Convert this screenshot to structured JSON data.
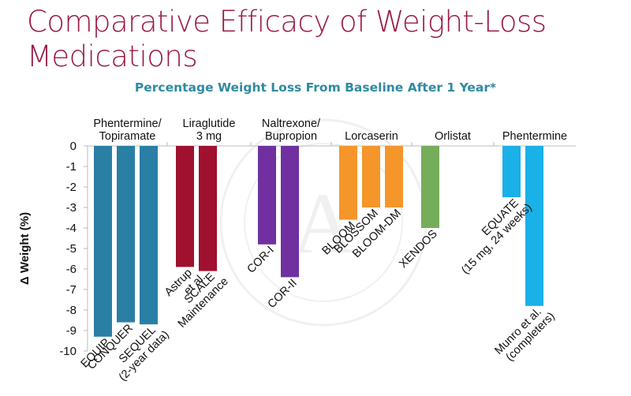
{
  "slide": {
    "title": "Comparative Efficacy of Weight-Loss Medications",
    "subtitle": "Percentage Weight Loss From Baseline After 1 Year*"
  },
  "chart_data": {
    "type": "bar",
    "title": "Percentage Weight Loss From Baseline After 1 Year*",
    "xlabel": "",
    "ylabel": "Δ Weight (%)",
    "ylim": [
      -10,
      0
    ],
    "yticks": [
      0,
      -1,
      -2,
      -3,
      -4,
      -5,
      -6,
      -7,
      -8,
      -9,
      -10
    ],
    "grid": false,
    "legend": "none",
    "groups": [
      {
        "name": "Phentermine/ Topiramate",
        "name_lines": [
          "Phentermine/",
          "Topiramate"
        ],
        "color": "#2a7fa5",
        "bars": [
          {
            "label_lines": [
              "EQUIP"
            ],
            "value": -9.3
          },
          {
            "label_lines": [
              "CONQUER"
            ],
            "value": -8.6
          },
          {
            "label_lines": [
              "SEQUEL",
              "(2-year data)"
            ],
            "value": -8.7
          }
        ]
      },
      {
        "name": "Liraglutide 3 mg",
        "name_lines": [
          "Liraglutide",
          "3 mg"
        ],
        "color": "#a0102f",
        "bars": [
          {
            "label_lines": [
              "Astrup",
              "et al."
            ],
            "value": -5.9
          },
          {
            "label_lines": [
              "SCALE",
              "Maintenance"
            ],
            "value": -6.1
          }
        ]
      },
      {
        "name": "Naltrexone/ Bupropion",
        "name_lines": [
          "Naltrexone/",
          "Bupropion"
        ],
        "color": "#7030a0",
        "bars": [
          {
            "label_lines": [
              "COR-I"
            ],
            "value": -4.8
          },
          {
            "label_lines": [
              "COR-II"
            ],
            "value": -6.4
          }
        ]
      },
      {
        "name": "Lorcaserin",
        "name_lines": [
          "Lorcaserin"
        ],
        "color": "#f5962a",
        "bars": [
          {
            "label_lines": [
              "BLOOM"
            ],
            "value": -3.6
          },
          {
            "label_lines": [
              "BLOSSOM"
            ],
            "value": -3.0
          },
          {
            "label_lines": [
              "BLOOM-DM"
            ],
            "value": -3.0
          }
        ]
      },
      {
        "name": "Orlistat",
        "name_lines": [
          "Orlistat"
        ],
        "color": "#76ad5b",
        "bars": [
          {
            "label_lines": [
              "XENDOS"
            ],
            "value": -4.0
          }
        ]
      },
      {
        "name": "Phentermine",
        "name_lines": [
          "Phentermine"
        ],
        "color": "#1ab0e8",
        "bars": [
          {
            "label_lines": [
              "EQUATE",
              "(15 mg, 24 weeks)"
            ],
            "value": -2.5
          },
          {
            "label_lines": [
              "Munro et al.",
              "(completers)"
            ],
            "value": -7.8
          }
        ]
      }
    ]
  }
}
